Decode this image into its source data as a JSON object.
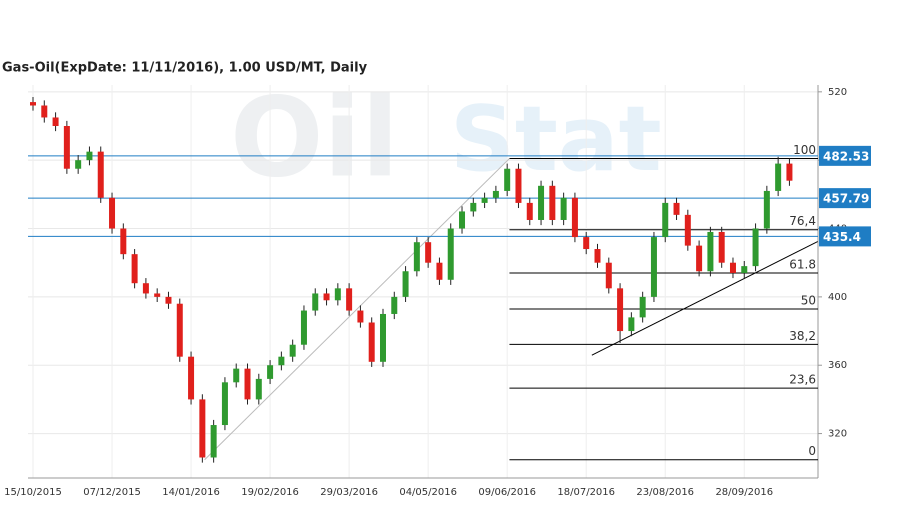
{
  "chart_data": {
    "type": "candlestick",
    "title": "Gas-Oil(ExpDate: 11/11/2016), 1.00 USD/MT, Daily",
    "watermark": [
      "Oil",
      "Stat"
    ],
    "categories": [
      "15/10/2015",
      null,
      null,
      null,
      null,
      null,
      null,
      "07/12/2015",
      null,
      null,
      null,
      null,
      null,
      null,
      "14/01/2016",
      null,
      null,
      null,
      null,
      null,
      null,
      "19/02/2016",
      null,
      null,
      null,
      null,
      null,
      null,
      "29/03/2016",
      null,
      null,
      null,
      null,
      null,
      null,
      "04/05/2016",
      null,
      null,
      null,
      null,
      null,
      null,
      "09/06/2016",
      null,
      null,
      null,
      null,
      null,
      null,
      "18/07/2016",
      null,
      null,
      null,
      null,
      null,
      null,
      "23/08/2016",
      null,
      null,
      null,
      null,
      null,
      null,
      "28/09/2016",
      null,
      null,
      null,
      null
    ],
    "open": [
      514,
      512,
      505,
      500,
      475,
      480,
      485,
      458,
      440,
      425,
      408,
      402,
      400,
      396,
      365,
      340,
      306,
      325,
      350,
      358,
      340,
      352,
      360,
      365,
      372,
      392,
      402,
      398,
      405,
      392,
      385,
      362,
      390,
      400,
      415,
      432,
      420,
      410,
      440,
      450,
      455,
      458,
      462,
      475,
      455,
      445,
      465,
      445,
      458,
      435,
      428,
      420,
      405,
      380,
      388,
      400,
      435,
      455,
      448,
      430,
      415,
      438,
      420,
      414,
      418,
      440,
      462,
      478
    ],
    "high": [
      517,
      515,
      508,
      503,
      483,
      488,
      488,
      461,
      443,
      428,
      411,
      405,
      403,
      399,
      368,
      343,
      328,
      353,
      361,
      361,
      355,
      363,
      368,
      375,
      395,
      405,
      405,
      408,
      408,
      395,
      388,
      393,
      403,
      418,
      435,
      435,
      423,
      443,
      453,
      458,
      461,
      465,
      478,
      478,
      458,
      468,
      468,
      461,
      461,
      438,
      431,
      423,
      408,
      391,
      403,
      438,
      458,
      458,
      451,
      433,
      441,
      441,
      423,
      421,
      443,
      465,
      482,
      481
    ],
    "low": [
      509,
      502,
      497,
      472,
      472,
      477,
      455,
      437,
      422,
      405,
      399,
      397,
      393,
      362,
      337,
      303,
      303,
      322,
      347,
      337,
      337,
      349,
      357,
      362,
      369,
      389,
      395,
      395,
      389,
      382,
      359,
      359,
      387,
      397,
      412,
      417,
      407,
      407,
      437,
      447,
      452,
      455,
      459,
      452,
      442,
      442,
      442,
      442,
      432,
      425,
      417,
      402,
      373,
      377,
      385,
      397,
      432,
      445,
      427,
      412,
      412,
      417,
      411,
      411,
      415,
      437,
      459,
      465
    ],
    "close": [
      512,
      505,
      500,
      475,
      480,
      485,
      458,
      440,
      425,
      408,
      402,
      400,
      396,
      365,
      340,
      306,
      325,
      350,
      358,
      340,
      352,
      360,
      365,
      372,
      392,
      402,
      398,
      405,
      392,
      385,
      362,
      390,
      400,
      415,
      432,
      420,
      410,
      440,
      450,
      455,
      458,
      462,
      475,
      455,
      445,
      465,
      445,
      458,
      435,
      428,
      420,
      405,
      380,
      388,
      400,
      435,
      455,
      448,
      430,
      415,
      438,
      420,
      414,
      418,
      440,
      462,
      478,
      468
    ],
    "up_color": "#2f9a2f",
    "down_color": "#e0201c",
    "ylim": [
      294,
      524
    ],
    "yticks": [
      320,
      360,
      400,
      440,
      480,
      520
    ],
    "price_lines": [
      482.53,
      457.79,
      435.4
    ],
    "price_line_color": "#1f7dc4",
    "fibonacci": {
      "x_start": 42.2,
      "levels": [
        {
          "label": "100",
          "price": 481
        },
        {
          "label": "76,4",
          "price": 439.3
        },
        {
          "label": "61.8",
          "price": 414
        },
        {
          "label": "50",
          "price": 392.9
        },
        {
          "label": "38,2",
          "price": 372.2
        },
        {
          "label": "23,6",
          "price": 346.6
        },
        {
          "label": "0",
          "price": 304.7
        }
      ]
    },
    "trend_lines": [
      {
        "x": [
          15.2,
          42.2
        ],
        "y": [
          304.7,
          481
        ],
        "color": "#bbbbbb"
      },
      {
        "x": [
          49.5,
          69.5
        ],
        "y": [
          365.9,
          432.4
        ],
        "color": "#000000"
      }
    ]
  }
}
